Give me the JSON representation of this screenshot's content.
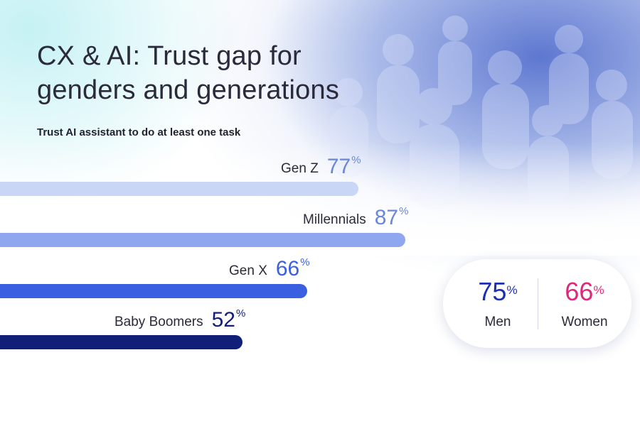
{
  "header": {
    "title_line1": "CX & AI: Trust gap for",
    "title_line2": "genders and generations",
    "subtitle": "Trust AI assistant to do at least one task"
  },
  "chart_data": {
    "type": "bar",
    "orientation": "horizontal",
    "title": "CX & AI: Trust gap for genders and generations",
    "subtitle": "Trust AI assistant to do at least one task",
    "unit": "%",
    "categories": [
      "Gen Z",
      "Millennials",
      "Gen X",
      "Baby Boomers"
    ],
    "values": [
      77,
      87,
      66,
      52
    ],
    "value_labels": [
      "77",
      "87",
      "66",
      "52"
    ],
    "colors": [
      "#c9d6f5",
      "#8fa7ef",
      "#3a5fe0",
      "#121f78"
    ],
    "value_colors": [
      "#6a86d8",
      "#6a86d8",
      "#3a5fe0",
      "#121f78"
    ],
    "xlim": [
      0,
      100
    ],
    "grid": false
  },
  "gender": {
    "pct_symbol": "%",
    "men": {
      "label": "Men",
      "value": "75",
      "color": "#1b2fb5"
    },
    "women": {
      "label": "Women",
      "value": "66",
      "color": "#e0287a"
    }
  }
}
